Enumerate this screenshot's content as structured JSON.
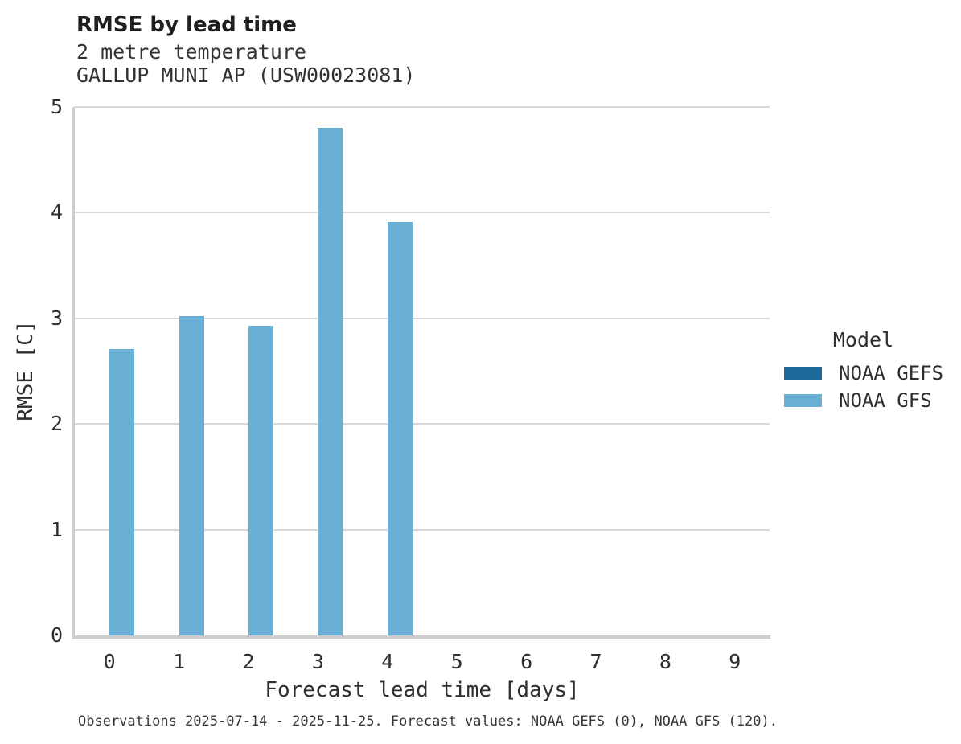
{
  "chart_data": {
    "type": "bar",
    "title": "RMSE by lead time",
    "subtitle": [
      "2 metre temperature",
      "GALLUP MUNI AP (USW00023081)"
    ],
    "xlabel": "Forecast lead time [days]",
    "ylabel": "RMSE [C]",
    "categories": [
      "0",
      "1",
      "2",
      "3",
      "4",
      "5",
      "6",
      "7",
      "8",
      "9"
    ],
    "yticks": [
      0,
      1,
      2,
      3,
      4,
      5
    ],
    "ylim": [
      0,
      5
    ],
    "grid": true,
    "series": [
      {
        "name": "NOAA GEFS",
        "color": "#1c6a99",
        "values": [
          null,
          null,
          null,
          null,
          null,
          null,
          null,
          null,
          null,
          null
        ]
      },
      {
        "name": "NOAA GFS",
        "color": "#69afd6",
        "values": [
          2.71,
          3.02,
          2.93,
          4.8,
          3.91,
          null,
          null,
          null,
          null,
          null
        ]
      }
    ],
    "legend": {
      "title": "Model",
      "position": "right",
      "entries": [
        {
          "label": "NOAA GEFS",
          "color": "#1c6a99"
        },
        {
          "label": "NOAA GFS",
          "color": "#69afd6"
        }
      ]
    },
    "footer": "Observations 2025-07-14 - 2025-11-25. Forecast values: NOAA GEFS (0), NOAA GFS (120)."
  }
}
